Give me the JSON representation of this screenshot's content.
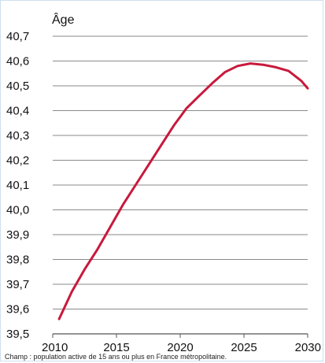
{
  "chart_data": {
    "type": "line",
    "title": "",
    "xlabel": "",
    "ylabel": "Âge",
    "xlim": [
      2010,
      2030
    ],
    "ylim": [
      39.5,
      40.7
    ],
    "x_ticks": [
      2010,
      2015,
      2020,
      2025,
      2030
    ],
    "y_ticks": [
      39.5,
      39.6,
      39.7,
      39.8,
      39.9,
      40.0,
      40.1,
      40.2,
      40.3,
      40.4,
      40.5,
      40.6,
      40.7
    ],
    "x_tick_labels": [
      "2010",
      "2015",
      "2020",
      "2025",
      "2030"
    ],
    "y_tick_labels": [
      "39,5",
      "39,6",
      "39,7",
      "39,8",
      "39,9",
      "40,0",
      "40,1",
      "40,2",
      "40,3",
      "40,4",
      "40,5",
      "40,6",
      "40,7"
    ],
    "grid": "horizontal",
    "series": [
      {
        "color": "#c8193c",
        "x": [
          2010.5,
          2011.5,
          2012.5,
          2013.5,
          2014.5,
          2015.5,
          2016.5,
          2017.5,
          2018.5,
          2019.5,
          2020.5,
          2021.5,
          2022.5,
          2023.5,
          2024.5,
          2025.5,
          2026.5,
          2027.5,
          2028.5,
          2029.5,
          2030
        ],
        "values": [
          39.56,
          39.67,
          39.76,
          39.84,
          39.93,
          40.02,
          40.1,
          40.18,
          40.26,
          40.34,
          40.41,
          40.46,
          40.51,
          40.555,
          40.58,
          40.59,
          40.585,
          40.575,
          40.56,
          40.52,
          40.49
        ]
      }
    ]
  },
  "footnote": "Champ : population active de 15 ans ou plus en France métropolitaine."
}
